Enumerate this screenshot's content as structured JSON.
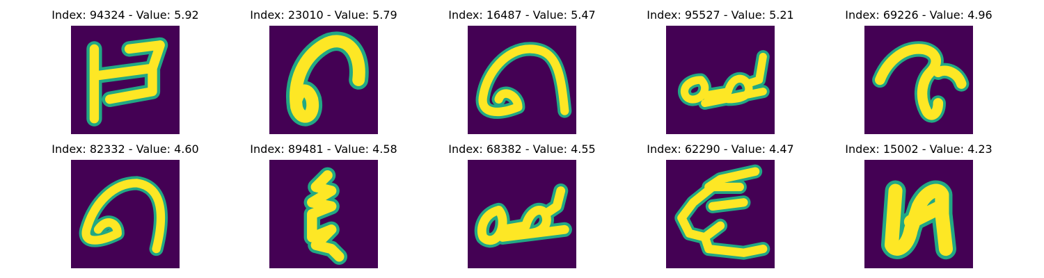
{
  "colors": {
    "background": "#440154",
    "glyph_core": "#fde725",
    "glyph_edge": "#22a884"
  },
  "panels": [
    {
      "title": "Index: 94324 - Value: 5.92"
    },
    {
      "title": "Index: 23010 - Value: 5.79"
    },
    {
      "title": "Index: 16487 - Value: 5.47"
    },
    {
      "title": "Index: 95527 - Value: 5.21"
    },
    {
      "title": "Index: 69226 - Value: 4.96"
    },
    {
      "title": "Index: 82332 - Value: 4.60"
    },
    {
      "title": "Index: 89481 - Value: 4.58"
    },
    {
      "title": "Index: 68382 - Value: 4.55"
    },
    {
      "title": "Index: 62290 - Value: 4.47"
    },
    {
      "title": "Index: 15002 - Value: 4.23"
    }
  ]
}
